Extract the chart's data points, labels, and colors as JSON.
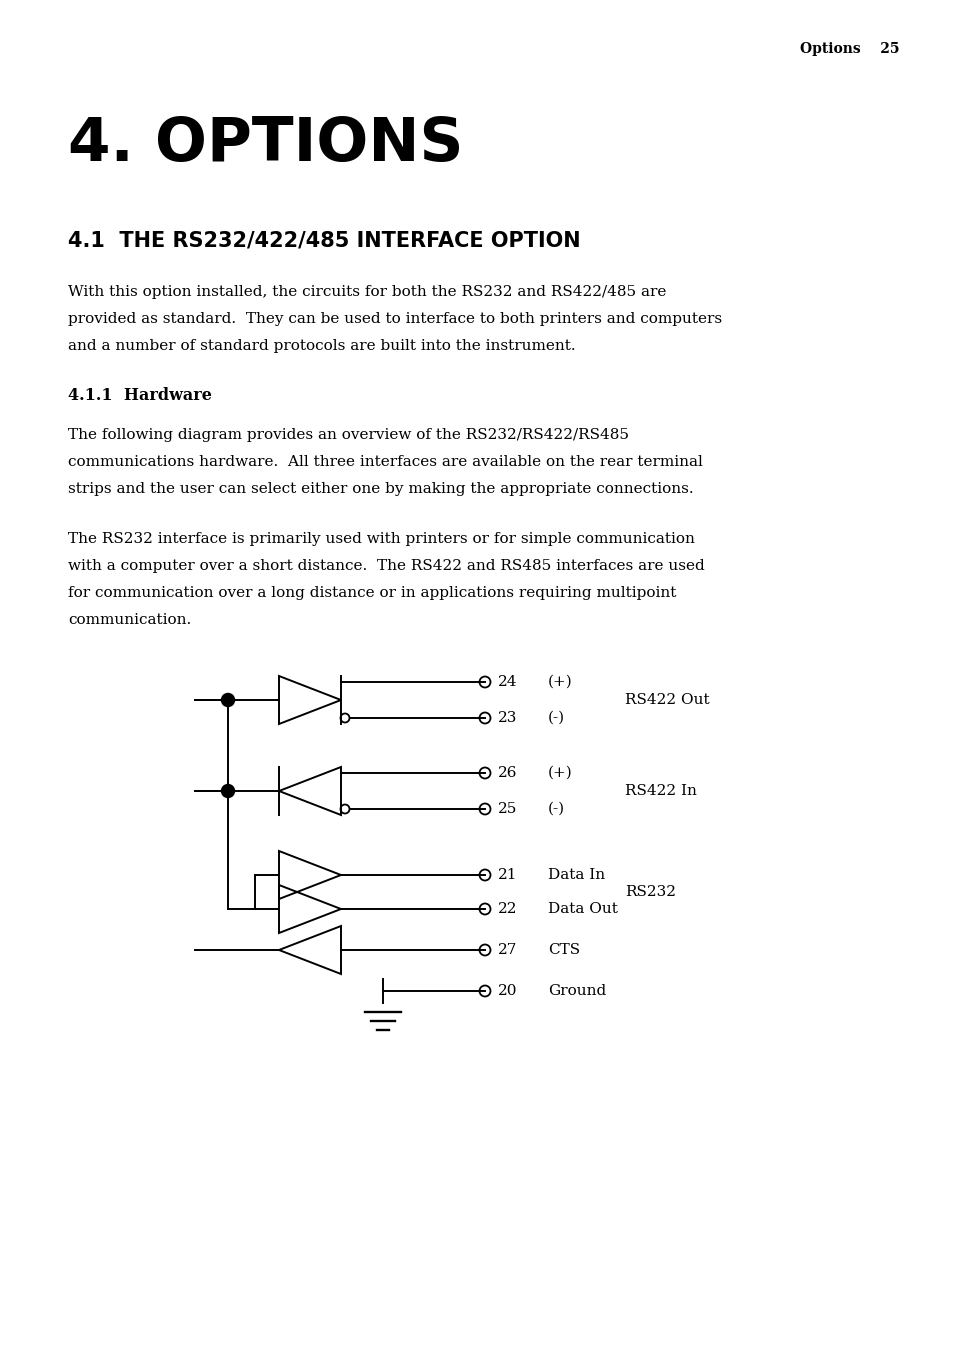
{
  "page_header": "Options    25",
  "title": "4. OPTIONS",
  "section_title": "4.1  THE RS232/422/485 INTERFACE OPTION",
  "para1_lines": [
    "With this option installed, the circuits for both the RS232 and RS422/485 are",
    "provided as standard.  They can be used to interface to both printers and computers",
    "and a number of standard protocols are built into the instrument."
  ],
  "subsection_title": "4.1.1  Hardware",
  "para2_lines": [
    "The following diagram provides an overview of the RS232/RS422/RS485",
    "communications hardware.  All three interfaces are available on the rear terminal",
    "strips and the user can select either one by making the appropriate connections."
  ],
  "para3_lines": [
    "The RS232 interface is primarily used with printers or for simple communication",
    "with a computer over a short distance.  The RS422 and RS485 interfaces are used",
    "for communication over a long distance or in applications requiring multipoint",
    "communication."
  ],
  "bg_color": "#ffffff",
  "text_color": "#000000",
  "diagram": {
    "rs422_out_label": "RS422 Out",
    "rs422_in_label": "RS422 In",
    "rs232_label": "RS232"
  }
}
